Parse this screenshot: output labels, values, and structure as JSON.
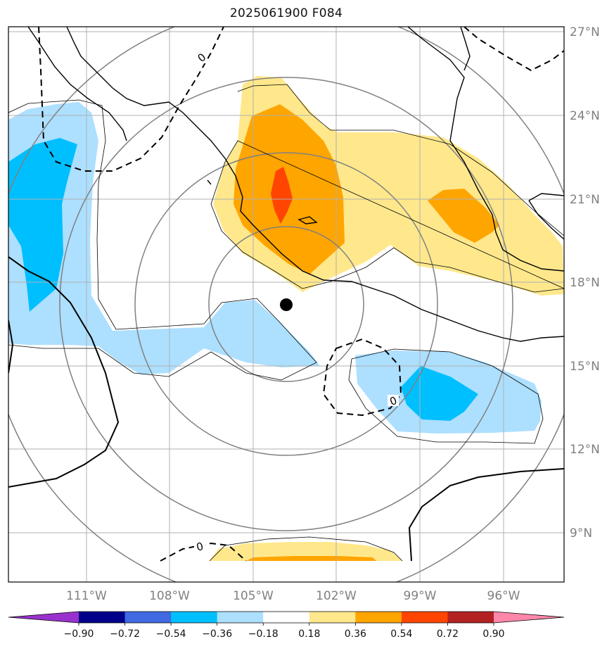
{
  "title": "2025061900 F084",
  "chart_data": {
    "type": "heatmap",
    "title": "2025061900 F084",
    "x_ticks": [
      "111°W",
      "108°W",
      "105°W",
      "102°W",
      "99°W",
      "96°W"
    ],
    "y_ticks": [
      "27°N",
      "24°N",
      "21°N",
      "18°N",
      "15°N",
      "12°N",
      "9°N"
    ],
    "contour_labels": [
      "0",
      "0",
      "0"
    ],
    "storm_center": {
      "lon": -103.8,
      "lat": 17.2
    },
    "colorbar": {
      "ticks": [
        "−0.90",
        "−0.72",
        "−0.54",
        "−0.36",
        "−0.18",
        "0.18",
        "0.36",
        "0.54",
        "0.72",
        "0.90"
      ],
      "colors": [
        "#9932cc",
        "#00008b",
        "#4169e1",
        "#00bfff",
        "#addfff",
        "#ffffff",
        "#ffe88c",
        "#ffa500",
        "#ff4500",
        "#b22222",
        "#ff88aa"
      ],
      "extend": "both"
    },
    "grid": true,
    "projection": "lat-lon"
  }
}
